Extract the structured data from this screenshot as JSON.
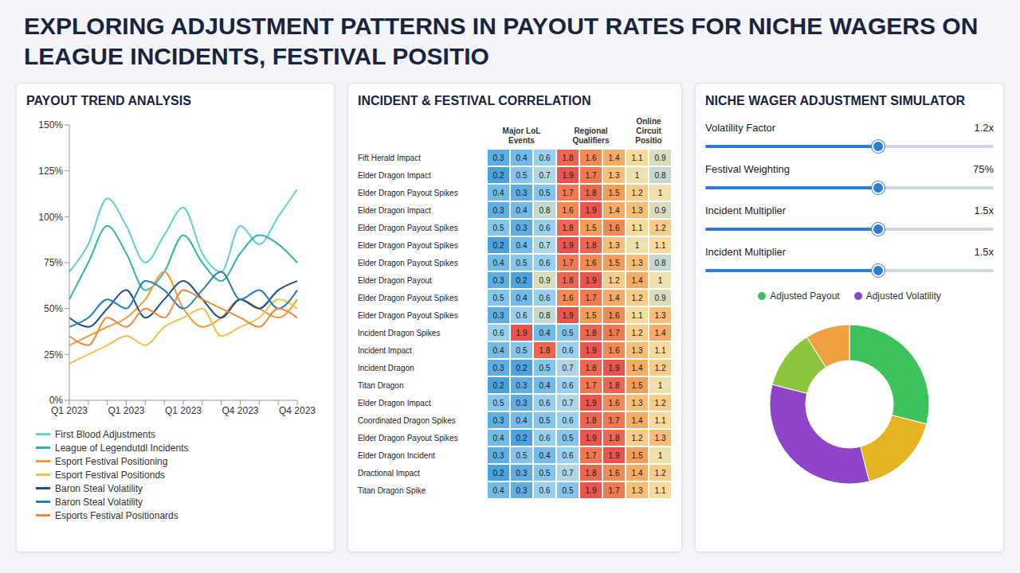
{
  "title": "EXPLORING ADJUSTMENT PATTERNS IN PAYOUT RATES FOR NICHE WAGERS ON LEAGUE INCIDENTS, FESTIVAL POSITIO",
  "chart_data": [
    {
      "type": "line",
      "title": "PAYOUT TREND ANALYSIS",
      "categories": [
        "Q1 2023",
        null,
        null,
        "Q1 2023",
        null,
        null,
        "Q1 2023",
        null,
        null,
        "Q4 2023",
        null,
        null,
        "Q4 2023"
      ],
      "ylim": [
        0,
        150
      ],
      "yticks": [
        {
          "value": 0,
          "label": "0%"
        },
        {
          "value": 25,
          "label": "25%"
        },
        {
          "value": 50,
          "label": "50%"
        },
        {
          "value": 75,
          "label": "75%"
        },
        {
          "value": 100,
          "label": "100%"
        },
        {
          "value": 125,
          "label": "125%"
        },
        {
          "value": 150,
          "label": "150%"
        }
      ],
      "grid": false,
      "legend": "bottom",
      "series": [
        {
          "name": "First Blood Adjustments",
          "color": "#5fd3d0",
          "values": [
            70,
            85,
            110,
            95,
            75,
            90,
            105,
            80,
            70,
            95,
            85,
            100,
            115
          ]
        },
        {
          "name": "League of Legendutdl Incidents",
          "color": "#2fb5a8",
          "values": [
            55,
            75,
            95,
            80,
            60,
            70,
            90,
            75,
            65,
            80,
            90,
            85,
            75
          ]
        },
        {
          "name": "Esport Festival Positioning",
          "color": "#f39c34",
          "values": [
            30,
            35,
            40,
            45,
            55,
            70,
            50,
            40,
            45,
            55,
            50,
            45,
            55
          ]
        },
        {
          "name": "Esport Festival Positionds",
          "color": "#f2c14e",
          "values": [
            20,
            25,
            30,
            35,
            30,
            40,
            45,
            50,
            35,
            40,
            45,
            55,
            50
          ]
        },
        {
          "name": "Baron Steal Volatility",
          "color": "#1f4e8c",
          "values": [
            45,
            40,
            50,
            60,
            45,
            55,
            65,
            55,
            45,
            55,
            50,
            60,
            65
          ]
        },
        {
          "name": "Baron Steal Volatility",
          "color": "#2a7fb8",
          "values": [
            40,
            45,
            55,
            50,
            65,
            60,
            50,
            60,
            70,
            55,
            60,
            50,
            60
          ]
        },
        {
          "name": "Esports Festival Positionards",
          "color": "#f08a3c",
          "values": [
            35,
            30,
            45,
            40,
            50,
            45,
            60,
            55,
            50,
            45,
            40,
            50,
            45
          ]
        }
      ]
    },
    {
      "type": "heatmap",
      "title": "INCIDENT & FESTIVAL CORRELATION",
      "data_labels": true,
      "columns": [
        "Major LoL Events",
        null,
        null,
        "Regional Qualifiers",
        null,
        null,
        "Online Circuit Positio",
        null
      ],
      "rows": [
        "Fift Herald Impact",
        "Elder Dragon Impact",
        "Elder Dragon Payout Spikes",
        "Elder Dragon Impact",
        "Elder Dragon Payout Spikes",
        "Elder Dragon Payout Spikes",
        "Elder Dragon Payout Spikes",
        "Elder Dragon Payout",
        "Elder Dragon Payout Spikes",
        "Elder Dragon Payout Spikes",
        "Incident Dragon Spikes",
        "Incident Impact",
        "Incident Dragon",
        "Titan Dragon",
        "Elder Dragon Impact",
        "Coordinated Dragon Spikes",
        "Elder Dragon Payout Spikes",
        "Elder Dragon Incident",
        "Dractional Impact",
        "Titan Dragon Spike"
      ],
      "cells": [
        [
          0.3,
          0.4,
          0.6,
          1.8,
          1.6,
          1.4,
          1.1,
          0.9
        ],
        [
          0.2,
          0.5,
          0.7,
          1.9,
          1.7,
          1.3,
          1.0,
          0.8
        ],
        [
          0.4,
          0.3,
          0.5,
          1.7,
          1.8,
          1.5,
          1.2,
          1.0
        ],
        [
          0.3,
          0.4,
          0.8,
          1.6,
          1.9,
          1.4,
          1.3,
          0.9
        ],
        [
          0.5,
          0.3,
          0.6,
          1.8,
          1.5,
          1.6,
          1.1,
          1.2
        ],
        [
          0.2,
          0.4,
          0.7,
          1.9,
          1.8,
          1.3,
          1.0,
          1.1
        ],
        [
          0.4,
          0.5,
          0.6,
          1.7,
          1.6,
          1.5,
          1.3,
          0.8
        ],
        [
          0.3,
          0.2,
          0.9,
          1.8,
          1.9,
          1.2,
          1.4,
          1.0
        ],
        [
          0.5,
          0.4,
          0.6,
          1.6,
          1.7,
          1.4,
          1.2,
          0.9
        ],
        [
          0.3,
          0.6,
          0.8,
          1.9,
          1.5,
          1.6,
          1.1,
          1.3
        ],
        [
          0.6,
          1.9,
          0.4,
          0.5,
          1.8,
          1.7,
          1.2,
          1.4
        ],
        [
          0.4,
          0.5,
          1.8,
          0.6,
          1.9,
          1.6,
          1.3,
          1.1
        ],
        [
          0.3,
          0.2,
          0.5,
          0.7,
          1.8,
          1.9,
          1.4,
          1.2
        ],
        [
          0.2,
          0.3,
          0.4,
          0.6,
          1.7,
          1.8,
          1.5,
          1.0
        ],
        [
          0.5,
          0.3,
          0.6,
          0.7,
          1.9,
          1.6,
          1.3,
          1.2
        ],
        [
          0.3,
          0.4,
          0.5,
          0.6,
          1.8,
          1.7,
          1.4,
          1.1
        ],
        [
          0.4,
          0.2,
          0.6,
          0.5,
          1.9,
          1.8,
          1.2,
          1.3
        ],
        [
          0.3,
          0.5,
          0.4,
          0.6,
          1.7,
          1.9,
          1.5,
          1.0
        ],
        [
          0.2,
          0.3,
          0.5,
          0.7,
          1.8,
          1.6,
          1.4,
          1.2
        ],
        [
          0.4,
          0.3,
          0.6,
          0.5,
          1.9,
          1.7,
          1.3,
          1.1
        ]
      ]
    },
    {
      "type": "pie",
      "legend": "top",
      "categories": [
        "Adjusted Payout",
        null,
        "Adjusted Volatility",
        null,
        null
      ],
      "values": [
        29,
        17,
        33,
        12,
        9
      ],
      "colors": [
        "#3cc25a",
        "#e6b422",
        "#8e44c8",
        "#8cc63f",
        "#f0a040"
      ]
    }
  ],
  "simulator": {
    "title": "NICHE WAGER ADJUSTMENT SIMULATOR",
    "controls": [
      {
        "label": "Volatility Factor",
        "value": "1.2x"
      },
      {
        "label": "Festival Weighting",
        "value": "75%"
      },
      {
        "label": "Incident Multiplier",
        "value": "1.5x"
      },
      {
        "label": "Incident Multiplier",
        "value": "1.5x"
      }
    ]
  }
}
